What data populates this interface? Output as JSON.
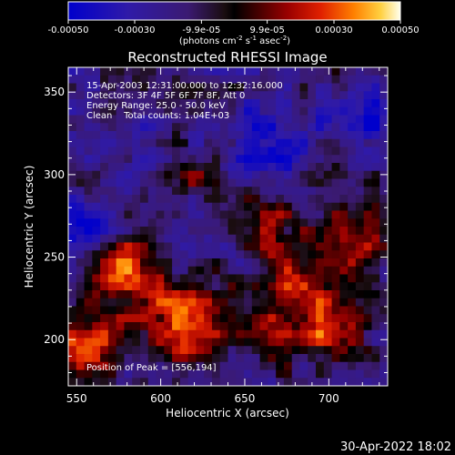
{
  "chart_data": {
    "type": "heatmap",
    "title": "Reconstructed RHESSI Image",
    "xlabel": "Heliocentric X (arcsec)",
    "ylabel": "Heliocentric Y (arcsec)",
    "xlim": [
      545,
      735
    ],
    "ylim": [
      172,
      365
    ],
    "xticks": [
      550,
      600,
      650,
      700
    ],
    "yticks": [
      200,
      250,
      300,
      350
    ],
    "grid": false,
    "colorbar": {
      "min": -0.0005,
      "max": 0.0005,
      "tick_values": [
        -0.0005,
        -0.0003,
        -9.9e-05,
        9.9e-05,
        0.0003,
        0.0005
      ],
      "tick_labels": [
        "-0.00050",
        "-0.00030",
        "-9.9e-05",
        "9.9e-05",
        "0.00030",
        "0.00050"
      ],
      "unit_label_parts": [
        "(photons cm",
        "-2",
        " s",
        "-1",
        " asec",
        "-2",
        ")"
      ]
    },
    "annotations": {
      "time_range": "15-Apr-2003 12:31:00.000 to 12:32:16.000",
      "detectors": "Detectors: 3F 4F 5F 6F 7F 8F, Att 0",
      "energy_range": "Energy Range: 25.0 - 50.0 keV",
      "algorithm_counts": "Clean    Total counts: 1.04E+03",
      "peak": "Position of Peak = [556,194]"
    },
    "hot_regions": [
      {
        "x": 556,
        "y": 194,
        "peak": 0.0005,
        "sigma": 12
      },
      {
        "x": 575,
        "y": 240,
        "peak": 0.00045,
        "sigma": 16
      },
      {
        "x": 615,
        "y": 210,
        "peak": 0.00042,
        "sigma": 20
      },
      {
        "x": 680,
        "y": 225,
        "peak": 0.0004,
        "sigma": 22
      },
      {
        "x": 612,
        "y": 300,
        "peak": 0.00036,
        "sigma": 9
      },
      {
        "x": 715,
        "y": 265,
        "peak": 0.00035,
        "sigma": 14
      },
      {
        "x": 660,
        "y": 270,
        "peak": 0.0003,
        "sigma": 14
      },
      {
        "x": 705,
        "y": 205,
        "peak": 0.0003,
        "sigma": 12
      }
    ],
    "cool_regions": [
      {
        "x": 560,
        "y": 268,
        "peak": -0.00035,
        "sigma": 11
      },
      {
        "x": 665,
        "y": 320,
        "peak": -0.0003,
        "sigma": 16
      },
      {
        "x": 720,
        "y": 330,
        "peak": -0.0003,
        "sigma": 10
      },
      {
        "x": 600,
        "y": 290,
        "peak": -0.00022,
        "sigma": 10
      },
      {
        "x": 650,
        "y": 245,
        "peak": -0.0002,
        "sigma": 8
      }
    ]
  },
  "footer": {
    "timestamp": "30-Apr-2022 18:02"
  }
}
